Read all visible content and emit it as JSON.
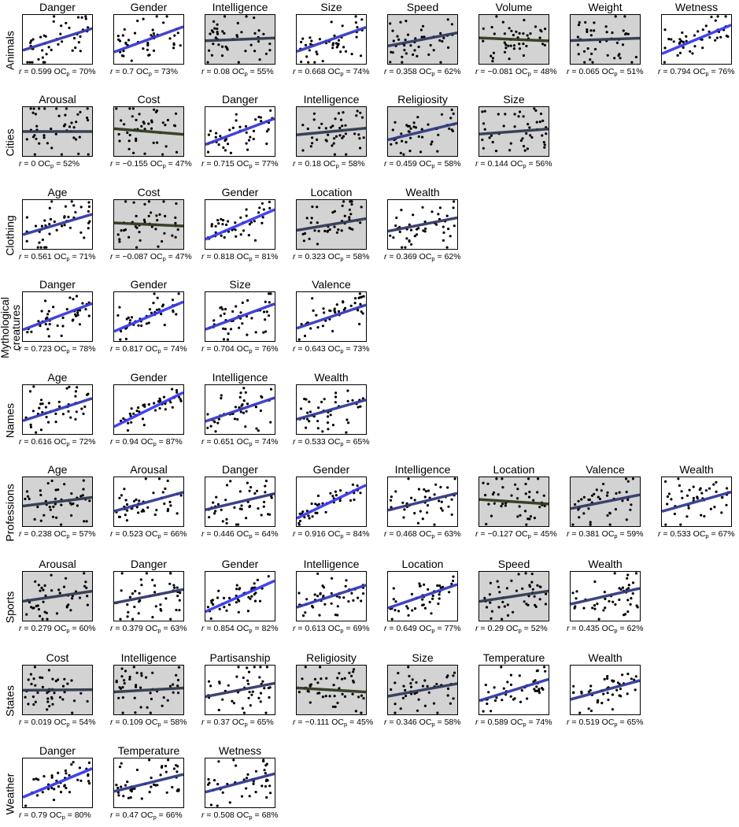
{
  "chart_data": [
    {
      "type": "scatter",
      "category": "Animals",
      "panels": [
        {
          "title": "Danger",
          "r_label": "r",
          "r": "0.599",
          "oc_label": "OC",
          "oc_sub": "p",
          "oc": "70%",
          "r_value": 0.599,
          "significant": true
        },
        {
          "title": "Gender",
          "r_label": "r",
          "r": "0.7",
          "oc_label": "OC",
          "oc_sub": "p",
          "oc": "73%",
          "r_value": 0.7,
          "significant": true
        },
        {
          "title": "Intelligence",
          "r_label": "r",
          "r": "0.08",
          "oc_label": "OC",
          "oc_sub": "p",
          "oc": "55%",
          "r_value": 0.08,
          "significant": false
        },
        {
          "title": "Size",
          "r_label": "r",
          "r": "0.668",
          "oc_label": "OC",
          "oc_sub": "p",
          "oc": "74%",
          "r_value": 0.668,
          "significant": true
        },
        {
          "title": "Speed",
          "r_label": "r",
          "r": "0.358",
          "oc_label": "OC",
          "oc_sub": "p",
          "oc": "62%",
          "r_value": 0.358,
          "significant": false
        },
        {
          "title": "Volume",
          "r_label": "r",
          "r": "−0.081",
          "oc_label": "OC",
          "oc_sub": "p",
          "oc": "48%",
          "r_value": -0.081,
          "significant": false
        },
        {
          "title": "Weight",
          "r_label": "r",
          "r": "0.065",
          "oc_label": "OC",
          "oc_sub": "p",
          "oc": "51%",
          "r_value": 0.065,
          "significant": false
        },
        {
          "title": "Wetness",
          "r_label": "r",
          "r": "0.794",
          "oc_label": "OC",
          "oc_sub": "p",
          "oc": "76%",
          "r_value": 0.794,
          "significant": true
        }
      ]
    },
    {
      "type": "scatter",
      "category": "Cities",
      "panels": [
        {
          "title": "Arousal",
          "r_label": "r",
          "r": "0",
          "oc_label": "OC",
          "oc_sub": "p",
          "oc": "52%",
          "r_value": 0,
          "significant": false
        },
        {
          "title": "Cost",
          "r_label": "r",
          "r": "−0.155",
          "oc_label": "OC",
          "oc_sub": "p",
          "oc": "47%",
          "r_value": -0.155,
          "significant": false
        },
        {
          "title": "Danger",
          "r_label": "r",
          "r": "0.715",
          "oc_label": "OC",
          "oc_sub": "p",
          "oc": "77%",
          "r_value": 0.715,
          "significant": true
        },
        {
          "title": "Intelligence",
          "r_label": "r",
          "r": "0.18",
          "oc_label": "OC",
          "oc_sub": "p",
          "oc": "58%",
          "r_value": 0.18,
          "significant": false
        },
        {
          "title": "Religiosity",
          "r_label": "r",
          "r": "0.459",
          "oc_label": "OC",
          "oc_sub": "p",
          "oc": "58%",
          "r_value": 0.459,
          "significant": false
        },
        {
          "title": "Size",
          "r_label": "r",
          "r": "0.144",
          "oc_label": "OC",
          "oc_sub": "p",
          "oc": "56%",
          "r_value": 0.144,
          "significant": false
        }
      ]
    },
    {
      "type": "scatter",
      "category": "Clothing",
      "panels": [
        {
          "title": "Age",
          "r_label": "r",
          "r": "0.561",
          "oc_label": "OC",
          "oc_sub": "p",
          "oc": "71%",
          "r_value": 0.561,
          "significant": true
        },
        {
          "title": "Cost",
          "r_label": "r",
          "r": "−0.087",
          "oc_label": "OC",
          "oc_sub": "p",
          "oc": "47%",
          "r_value": -0.087,
          "significant": false
        },
        {
          "title": "Gender",
          "r_label": "r",
          "r": "0.818",
          "oc_label": "OC",
          "oc_sub": "p",
          "oc": "81%",
          "r_value": 0.818,
          "significant": true
        },
        {
          "title": "Location",
          "r_label": "r",
          "r": "0.323",
          "oc_label": "OC",
          "oc_sub": "p",
          "oc": "58%",
          "r_value": 0.323,
          "significant": false
        },
        {
          "title": "Wealth",
          "r_label": "r",
          "r": "0.369",
          "oc_label": "OC",
          "oc_sub": "p",
          "oc": "62%",
          "r_value": 0.369,
          "significant": true
        }
      ]
    },
    {
      "type": "scatter",
      "category": "Mythological creatures",
      "panels": [
        {
          "title": "Danger",
          "r_label": "r",
          "r": "0.723",
          "oc_label": "OC",
          "oc_sub": "p",
          "oc": "78%",
          "r_value": 0.723,
          "significant": true
        },
        {
          "title": "Gender",
          "r_label": "r",
          "r": "0.817",
          "oc_label": "OC",
          "oc_sub": "p",
          "oc": "74%",
          "r_value": 0.817,
          "significant": true
        },
        {
          "title": "Size",
          "r_label": "r",
          "r": "0.704",
          "oc_label": "OC",
          "oc_sub": "p",
          "oc": "76%",
          "r_value": 0.704,
          "significant": true
        },
        {
          "title": "Valence",
          "r_label": "r",
          "r": "0.643",
          "oc_label": "OC",
          "oc_sub": "p",
          "oc": "73%",
          "r_value": 0.643,
          "significant": true
        }
      ]
    },
    {
      "type": "scatter",
      "category": "Names",
      "panels": [
        {
          "title": "Age",
          "r_label": "r",
          "r": "0.616",
          "oc_label": "OC",
          "oc_sub": "p",
          "oc": "72%",
          "r_value": 0.616,
          "significant": true
        },
        {
          "title": "Gender",
          "r_label": "r",
          "r": "0.94",
          "oc_label": "OC",
          "oc_sub": "p",
          "oc": "87%",
          "r_value": 0.94,
          "significant": true
        },
        {
          "title": "Intelligence",
          "r_label": "r",
          "r": "0.651",
          "oc_label": "OC",
          "oc_sub": "p",
          "oc": "74%",
          "r_value": 0.651,
          "significant": true
        },
        {
          "title": "Wealth",
          "r_label": "r",
          "r": "0.533",
          "oc_label": "OC",
          "oc_sub": "p",
          "oc": "65%",
          "r_value": 0.533,
          "significant": true
        }
      ]
    },
    {
      "type": "scatter",
      "category": "Professions",
      "panels": [
        {
          "title": "Age",
          "r_label": "r",
          "r": "0.238",
          "oc_label": "OC",
          "oc_sub": "p",
          "oc": "57%",
          "r_value": 0.238,
          "significant": false
        },
        {
          "title": "Arousal",
          "r_label": "r",
          "r": "0.523",
          "oc_label": "OC",
          "oc_sub": "p",
          "oc": "66%",
          "r_value": 0.523,
          "significant": true
        },
        {
          "title": "Danger",
          "r_label": "r",
          "r": "0.446",
          "oc_label": "OC",
          "oc_sub": "p",
          "oc": "64%",
          "r_value": 0.446,
          "significant": true
        },
        {
          "title": "Gender",
          "r_label": "r",
          "r": "0.916",
          "oc_label": "OC",
          "oc_sub": "p",
          "oc": "84%",
          "r_value": 0.916,
          "significant": true
        },
        {
          "title": "Intelligence",
          "r_label": "r",
          "r": "0.468",
          "oc_label": "OC",
          "oc_sub": "p",
          "oc": "63%",
          "r_value": 0.468,
          "significant": true
        },
        {
          "title": "Location",
          "r_label": "r",
          "r": "−0.127",
          "oc_label": "OC",
          "oc_sub": "p",
          "oc": "45%",
          "r_value": -0.127,
          "significant": false
        },
        {
          "title": "Valence",
          "r_label": "r",
          "r": "0.381",
          "oc_label": "OC",
          "oc_sub": "p",
          "oc": "59%",
          "r_value": 0.381,
          "significant": false
        },
        {
          "title": "Wealth",
          "r_label": "r",
          "r": "0.533",
          "oc_label": "OC",
          "oc_sub": "p",
          "oc": "67%",
          "r_value": 0.533,
          "significant": true
        }
      ]
    },
    {
      "type": "scatter",
      "category": "Sports",
      "panels": [
        {
          "title": "Arousal",
          "r_label": "r",
          "r": "0.279",
          "oc_label": "OC",
          "oc_sub": "p",
          "oc": "60%",
          "r_value": 0.279,
          "significant": false
        },
        {
          "title": "Danger",
          "r_label": "r",
          "r": "0.379",
          "oc_label": "OC",
          "oc_sub": "p",
          "oc": "63%",
          "r_value": 0.379,
          "significant": true
        },
        {
          "title": "Gender",
          "r_label": "r",
          "r": "0.854",
          "oc_label": "OC",
          "oc_sub": "p",
          "oc": "82%",
          "r_value": 0.854,
          "significant": true
        },
        {
          "title": "Intelligence",
          "r_label": "r",
          "r": "0.613",
          "oc_label": "OC",
          "oc_sub": "p",
          "oc": "69%",
          "r_value": 0.613,
          "significant": true
        },
        {
          "title": "Location",
          "r_label": "r",
          "r": "0.649",
          "oc_label": "OC",
          "oc_sub": "p",
          "oc": "77%",
          "r_value": 0.649,
          "significant": true
        },
        {
          "title": "Speed",
          "r_label": "r",
          "r": "0.29",
          "oc_label": "OC",
          "oc_sub": "p",
          "oc": "52%",
          "r_value": 0.29,
          "significant": false
        },
        {
          "title": "Wealth",
          "r_label": "r",
          "r": "0.435",
          "oc_label": "OC",
          "oc_sub": "p",
          "oc": "62%",
          "r_value": 0.435,
          "significant": true
        }
      ]
    },
    {
      "type": "scatter",
      "category": "States",
      "panels": [
        {
          "title": "Cost",
          "r_label": "r",
          "r": "0.019",
          "oc_label": "OC",
          "oc_sub": "p",
          "oc": "54%",
          "r_value": 0.019,
          "significant": false
        },
        {
          "title": "Intelligence",
          "r_label": "r",
          "r": "0.109",
          "oc_label": "OC",
          "oc_sub": "p",
          "oc": "58%",
          "r_value": 0.109,
          "significant": false
        },
        {
          "title": "Partisanship",
          "r_label": "r",
          "r": "0.37",
          "oc_label": "OC",
          "oc_sub": "p",
          "oc": "65%",
          "r_value": 0.37,
          "significant": true
        },
        {
          "title": "Religiosity",
          "r_label": "r",
          "r": "−0.111",
          "oc_label": "OC",
          "oc_sub": "p",
          "oc": "45%",
          "r_value": -0.111,
          "significant": false
        },
        {
          "title": "Size",
          "r_label": "r",
          "r": "0.346",
          "oc_label": "OC",
          "oc_sub": "p",
          "oc": "58%",
          "r_value": 0.346,
          "significant": false
        },
        {
          "title": "Temperature",
          "r_label": "r",
          "r": "0.589",
          "oc_label": "OC",
          "oc_sub": "p",
          "oc": "74%",
          "r_value": 0.589,
          "significant": true
        },
        {
          "title": "Wealth",
          "r_label": "r",
          "r": "0.519",
          "oc_label": "OC",
          "oc_sub": "p",
          "oc": "65%",
          "r_value": 0.519,
          "significant": true
        }
      ]
    },
    {
      "type": "scatter",
      "category": "Weather",
      "panels": [
        {
          "title": "Danger",
          "r_label": "r",
          "r": "0.79",
          "oc_label": "OC",
          "oc_sub": "p",
          "oc": "80%",
          "r_value": 0.79,
          "significant": true
        },
        {
          "title": "Temperature",
          "r_label": "r",
          "r": "0.47",
          "oc_label": "OC",
          "oc_sub": "p",
          "oc": "66%",
          "r_value": 0.47,
          "significant": true
        },
        {
          "title": "Wetness",
          "r_label": "r",
          "r": "0.508",
          "oc_label": "OC",
          "oc_sub": "p",
          "oc": "68%",
          "r_value": 0.508,
          "significant": true
        }
      ]
    }
  ],
  "colors": {
    "significant_background": "#ffffff",
    "nonsignificant_background": "#d3d3d3",
    "strong_positive_line": "#3a3af0",
    "weak_line": "#2f3a4f",
    "negative_line": "#2f3a1f",
    "points": "#000000"
  }
}
